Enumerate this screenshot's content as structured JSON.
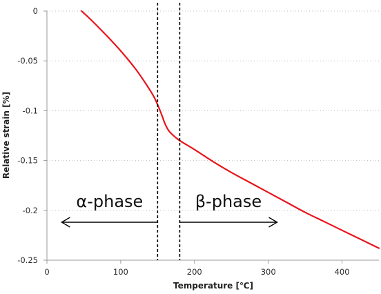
{
  "chart_data": {
    "type": "line",
    "title": "",
    "xlabel": "Temperature [℃]",
    "ylabel": "Relative strain [%]",
    "xlim": [
      0,
      450
    ],
    "ylim": [
      -0.25,
      0
    ],
    "x_ticks": [
      0,
      100,
      200,
      300,
      400
    ],
    "x_tick_labels": [
      "0",
      "100",
      "200",
      "300",
      "400"
    ],
    "y_ticks": [
      0,
      -0.05,
      -0.1,
      -0.15,
      -0.2,
      -0.25
    ],
    "y_tick_labels": [
      "0",
      "-0.05",
      "-0.1",
      "-0.15",
      "-0.2",
      "-0.25"
    ],
    "grid": "horizontal dotted",
    "series": [
      {
        "color": "#e8141b",
        "x": [
          47,
          60,
          80,
          100,
          120,
          135,
          145,
          150,
          155,
          160,
          165,
          170,
          180,
          200,
          225,
          250,
          275,
          300,
          325,
          350,
          375,
          400,
          425,
          450
        ],
        "y": [
          0,
          -0.009,
          -0.024,
          -0.04,
          -0.058,
          -0.074,
          -0.086,
          -0.094,
          -0.103,
          -0.113,
          -0.12,
          -0.124,
          -0.13,
          -0.139,
          -0.151,
          -0.162,
          -0.172,
          -0.182,
          -0.192,
          -0.202,
          -0.211,
          -0.22,
          -0.229,
          -0.238
        ]
      }
    ],
    "phase_boundaries": [
      150,
      180
    ],
    "annotations": [
      {
        "text": "α-phase",
        "arrow": "left",
        "x_from": 150,
        "x_to": 20
      },
      {
        "text": "β-phase",
        "arrow": "right",
        "x_from": 180,
        "x_to": 312
      }
    ]
  }
}
